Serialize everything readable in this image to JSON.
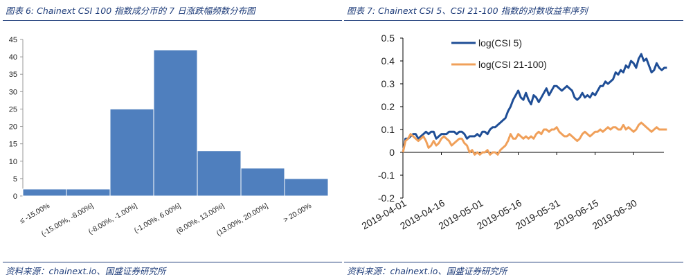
{
  "left": {
    "title": "图表 6: Chainext CSI 100 指数成分币的 7 日涨跌幅频数分布图",
    "source": "资料来源：chainext.io、国盛证券研究所"
  },
  "right": {
    "title": "图表 7: Chainext CSI 5、CSI 21-100 指数的对数收益率序列",
    "source": "资料来源：chainext.io、国盛证券研究所"
  },
  "colors": {
    "bar": "#4f7fbe",
    "series1": "#1f4e96",
    "series2": "#f0a05a",
    "rule": "#1f3d7a"
  },
  "chart_data": [
    {
      "type": "bar",
      "title": "",
      "categories": [
        "≤ -15.00%",
        "(-15.00%, -8.00%]",
        "(-8.00%, -1.00%]",
        "(-1.00%, 6.00%]",
        "(6.00%, 13.00%]",
        "(13.00%, 20.00%]",
        "> 20.00%"
      ],
      "values": [
        2,
        2,
        25,
        42,
        13,
        8,
        5
      ],
      "ylim": [
        0,
        45
      ],
      "yticks": [
        0,
        5,
        10,
        15,
        20,
        25,
        30,
        35,
        40,
        45
      ],
      "grid": false
    },
    {
      "type": "line",
      "title": "",
      "x_ticks": [
        "2019-04-01",
        "2019-04-16",
        "2019-05-01",
        "2019-05-16",
        "2019-05-31",
        "2019-06-15",
        "2019-06-30"
      ],
      "x_start": "2019-04-01",
      "ylim": [
        -0.2,
        0.5
      ],
      "yticks": [
        "-0.2",
        "-0.1",
        "0",
        "0.1",
        "0.2",
        "0.3",
        "0.4",
        "0.5"
      ],
      "legend_position": "top-left inside",
      "series": [
        {
          "name": "log(CSI 5)",
          "values": [
            0.0,
            0.06,
            0.06,
            0.07,
            0.08,
            0.08,
            0.06,
            0.07,
            0.08,
            0.09,
            0.08,
            0.09,
            0.09,
            0.06,
            0.07,
            0.08,
            0.08,
            0.08,
            0.09,
            0.09,
            0.09,
            0.08,
            0.09,
            0.09,
            0.08,
            0.06,
            0.07,
            0.07,
            0.07,
            0.08,
            0.07,
            0.09,
            0.09,
            0.08,
            0.1,
            0.11,
            0.11,
            0.12,
            0.13,
            0.14,
            0.15,
            0.18,
            0.2,
            0.23,
            0.25,
            0.27,
            0.24,
            0.23,
            0.26,
            0.23,
            0.21,
            0.25,
            0.24,
            0.22,
            0.24,
            0.26,
            0.28,
            0.25,
            0.27,
            0.29,
            0.29,
            0.28,
            0.27,
            0.28,
            0.29,
            0.28,
            0.27,
            0.24,
            0.23,
            0.24,
            0.26,
            0.24,
            0.25,
            0.24,
            0.26,
            0.25,
            0.27,
            0.29,
            0.29,
            0.31,
            0.3,
            0.31,
            0.32,
            0.35,
            0.34,
            0.36,
            0.35,
            0.38,
            0.37,
            0.4,
            0.39,
            0.37,
            0.41,
            0.43,
            0.4,
            0.41,
            0.38,
            0.35,
            0.36,
            0.39,
            0.37,
            0.36,
            0.37,
            0.37
          ]
        },
        {
          "name": "log(CSI 21-100)",
          "values": [
            0.0,
            0.05,
            0.06,
            0.08,
            0.07,
            0.06,
            0.05,
            0.06,
            0.07,
            0.05,
            0.02,
            0.03,
            0.05,
            0.03,
            0.04,
            0.06,
            0.07,
            0.06,
            0.05,
            0.03,
            0.04,
            0.05,
            0.06,
            0.06,
            0.04,
            0.03,
            0.0,
            0.01,
            -0.01,
            0.0,
            -0.01,
            0.0,
            0.0,
            0.01,
            -0.01,
            0.0,
            0.0,
            -0.01,
            0.01,
            0.02,
            0.03,
            0.05,
            0.08,
            0.06,
            0.06,
            0.08,
            0.07,
            0.06,
            0.07,
            0.06,
            0.07,
            0.06,
            0.08,
            0.09,
            0.08,
            0.1,
            0.1,
            0.09,
            0.1,
            0.1,
            0.11,
            0.09,
            0.08,
            0.07,
            0.07,
            0.08,
            0.07,
            0.06,
            0.05,
            0.06,
            0.08,
            0.09,
            0.08,
            0.07,
            0.08,
            0.09,
            0.09,
            0.1,
            0.09,
            0.1,
            0.11,
            0.1,
            0.11,
            0.11,
            0.1,
            0.1,
            0.12,
            0.1,
            0.11,
            0.1,
            0.09,
            0.1,
            0.12,
            0.13,
            0.12,
            0.11,
            0.1,
            0.09,
            0.1,
            0.11,
            0.1,
            0.1,
            0.1,
            0.1
          ]
        }
      ]
    }
  ]
}
